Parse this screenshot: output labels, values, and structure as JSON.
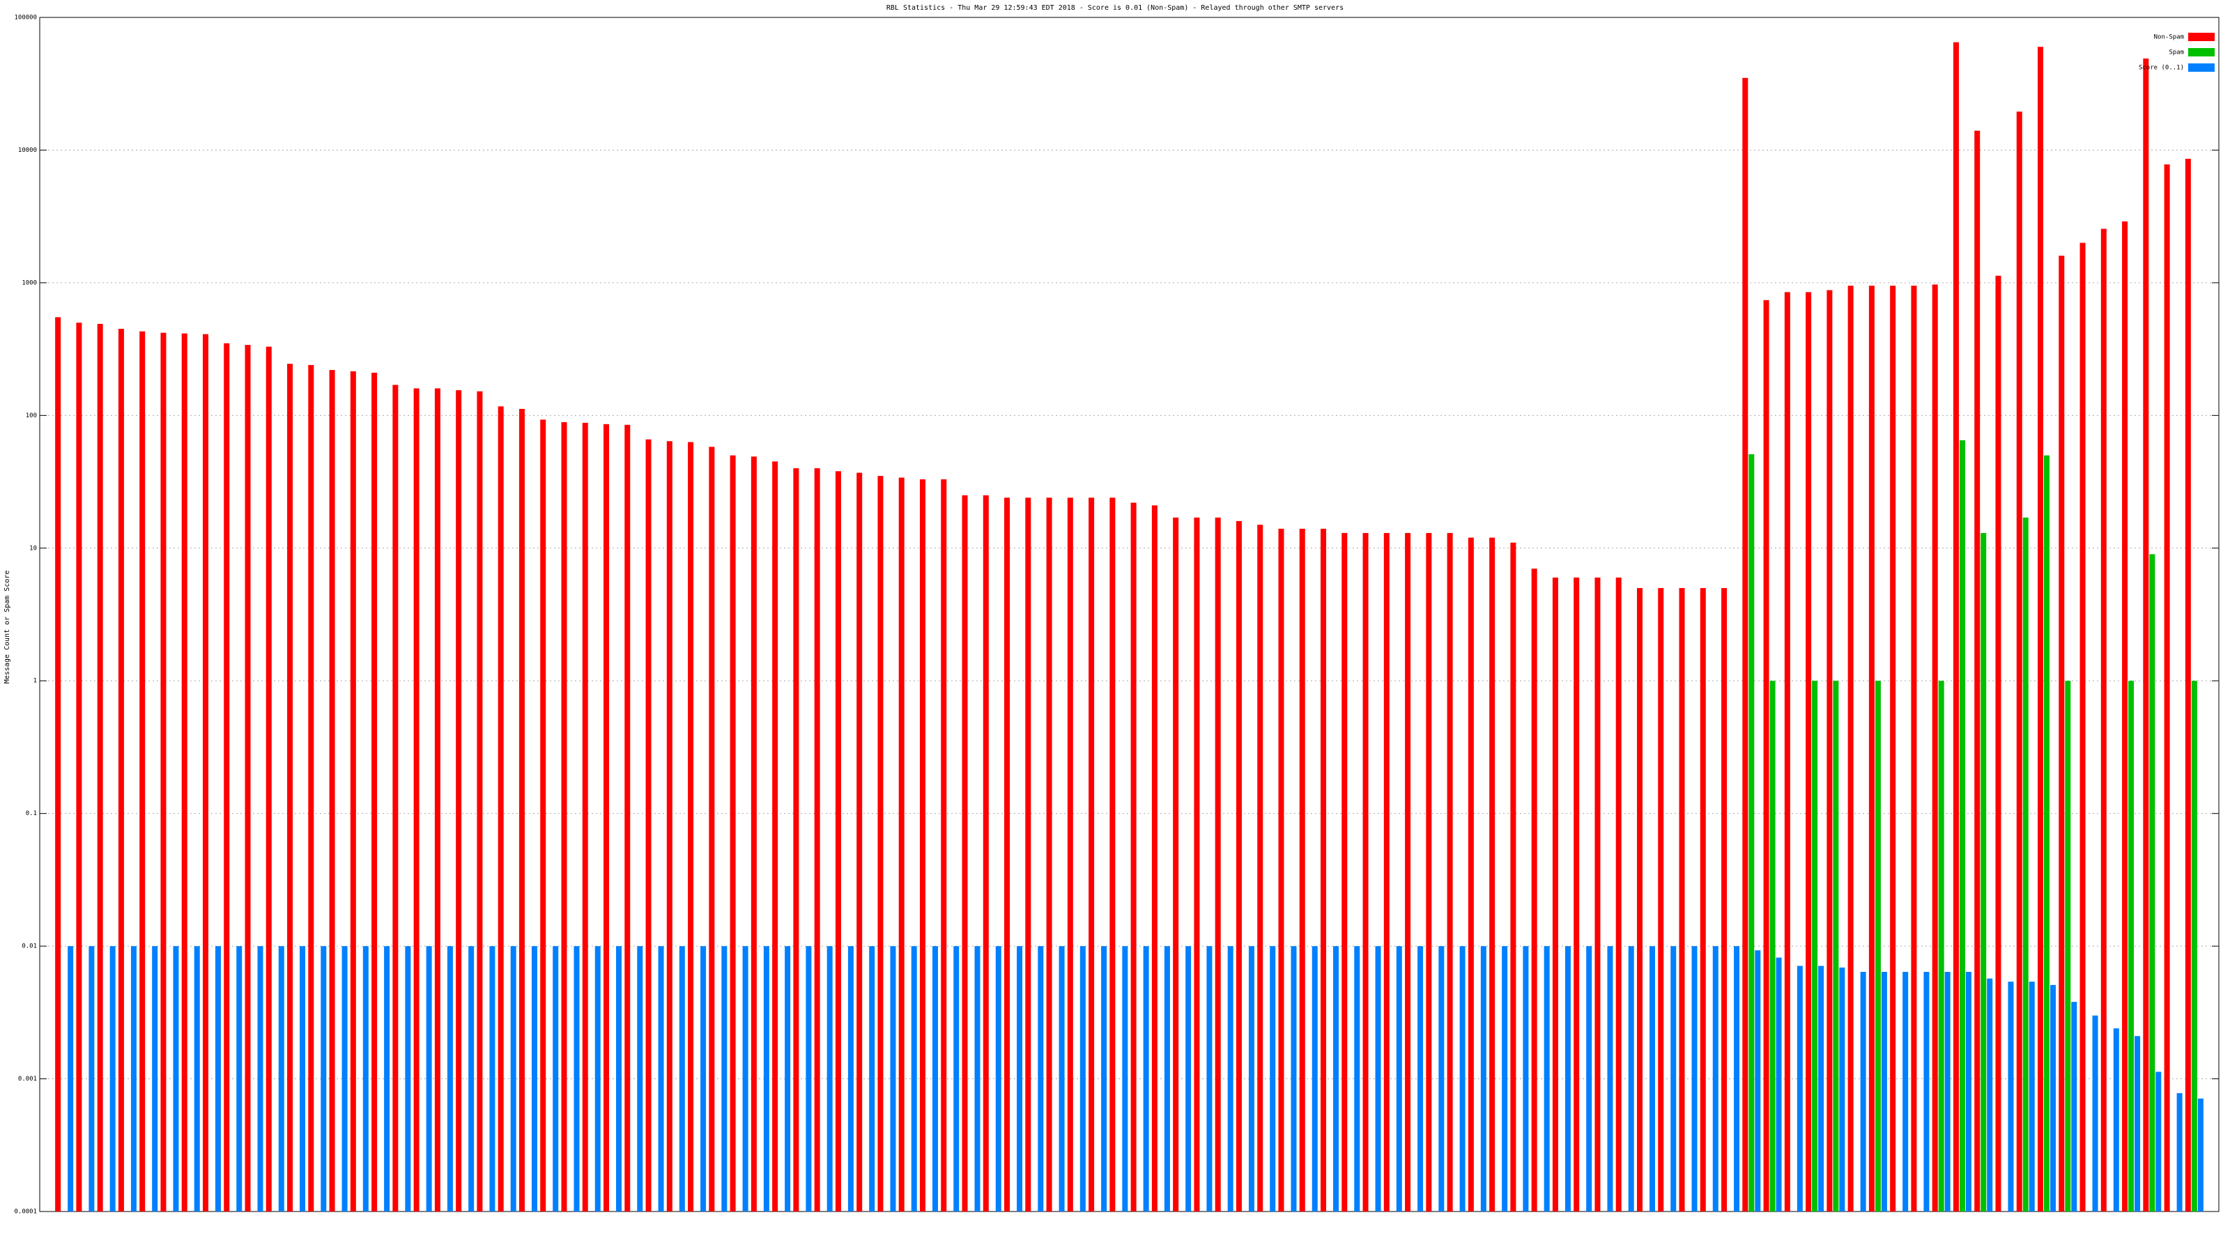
{
  "chart_data": {
    "type": "bar",
    "title": "RBL Statistics - Thu Mar 29 12:59:43 EDT 2018 - Score is 0.01 (Non-Spam) - Relayed through other SMTP servers",
    "y_label": "Message Count or Spam Score",
    "categories": [
      null,
      null,
      null,
      null,
      null,
      null,
      null,
      null,
      null,
      null,
      null,
      null,
      null,
      null,
      null,
      null,
      null,
      null,
      null,
      null,
      null,
      null,
      null,
      null,
      null,
      null,
      null,
      null,
      null,
      null,
      null,
      null,
      null,
      null,
      null,
      null,
      null,
      null,
      null,
      null,
      null,
      null,
      null,
      null,
      null,
      null,
      null,
      null,
      null,
      null,
      null,
      null,
      null,
      null,
      null,
      null,
      null,
      null,
      null,
      null,
      null,
      null,
      null,
      null,
      null,
      null,
      null,
      null,
      null,
      null,
      null,
      null,
      null,
      null,
      null,
      null,
      null,
      null,
      null,
      null,
      null,
      null,
      null,
      null,
      null,
      null,
      null,
      null,
      null,
      null,
      null,
      null,
      null,
      null,
      null,
      null,
      null,
      null,
      null,
      null,
      null,
      null
    ],
    "series": [
      {
        "name": "Non-Spam",
        "color": "#ff0000",
        "values": [
          550,
          500,
          490,
          450,
          430,
          420,
          415,
          410,
          350,
          340,
          330,
          245,
          240,
          220,
          215,
          210,
          170,
          160,
          160,
          155,
          152,
          117,
          112,
          93,
          89,
          88,
          86,
          85,
          66,
          64,
          63,
          58,
          50,
          49,
          45,
          40,
          40,
          38,
          37,
          35,
          34,
          33,
          33,
          25,
          25,
          24,
          24,
          24,
          24,
          24,
          24,
          22,
          21,
          17,
          17,
          17,
          16,
          15,
          14,
          14,
          14,
          13,
          13,
          13,
          13,
          13,
          13,
          12,
          12,
          11,
          7,
          6,
          6,
          6,
          6,
          5,
          5,
          5,
          5,
          5,
          35000,
          740,
          850,
          850,
          880,
          950,
          950,
          950,
          950,
          970,
          65000,
          14000,
          1130,
          19500,
          60000,
          1600,
          2000,
          2550,
          2900,
          49000,
          7800,
          8600
        ]
      },
      {
        "name": "Spam",
        "color": "#00c000",
        "values": [
          null,
          null,
          null,
          null,
          null,
          null,
          null,
          null,
          null,
          null,
          null,
          null,
          null,
          null,
          null,
          null,
          null,
          null,
          null,
          null,
          null,
          null,
          null,
          null,
          null,
          null,
          null,
          null,
          null,
          null,
          null,
          null,
          null,
          null,
          null,
          null,
          null,
          null,
          null,
          null,
          null,
          null,
          null,
          null,
          null,
          null,
          null,
          null,
          null,
          null,
          null,
          null,
          null,
          null,
          null,
          null,
          null,
          null,
          null,
          null,
          null,
          null,
          null,
          null,
          null,
          null,
          null,
          null,
          null,
          null,
          null,
          null,
          null,
          null,
          null,
          null,
          null,
          null,
          null,
          null,
          51,
          1,
          null,
          1,
          1,
          null,
          1,
          null,
          null,
          1,
          65,
          13,
          null,
          17,
          50,
          1,
          null,
          null,
          1,
          9,
          null,
          1
        ]
      },
      {
        "name": "Score (0..1)",
        "color": "#0080ff",
        "values": [
          0.01,
          0.01,
          0.01,
          0.01,
          0.01,
          0.01,
          0.01,
          0.01,
          0.01,
          0.01,
          0.01,
          0.01,
          0.01,
          0.01,
          0.01,
          0.01,
          0.01,
          0.01,
          0.01,
          0.01,
          0.01,
          0.01,
          0.01,
          0.01,
          0.01,
          0.01,
          0.01,
          0.01,
          0.01,
          0.01,
          0.01,
          0.01,
          0.01,
          0.01,
          0.01,
          0.01,
          0.01,
          0.01,
          0.01,
          0.01,
          0.01,
          0.01,
          0.01,
          0.01,
          0.01,
          0.01,
          0.01,
          0.01,
          0.01,
          0.01,
          0.01,
          0.01,
          0.01,
          0.01,
          0.01,
          0.01,
          0.01,
          0.01,
          0.01,
          0.01,
          0.01,
          0.01,
          0.01,
          0.01,
          0.01,
          0.01,
          0.01,
          0.01,
          0.01,
          0.01,
          0.01,
          0.01,
          0.01,
          0.01,
          0.01,
          0.01,
          0.01,
          0.01,
          0.01,
          0.01,
          0.0093,
          0.0082,
          0.0071,
          0.0071,
          0.0069,
          0.0064,
          0.0064,
          0.0064,
          0.0064,
          0.0064,
          0.0064,
          0.0057,
          0.0054,
          0.0054,
          0.0051,
          0.0038,
          0.003,
          0.0024,
          0.0021,
          0.00113,
          0.00078,
          0.00071
        ]
      }
    ],
    "ylim": [
      0.0001,
      100000
    ],
    "yticks": [
      0.0001,
      0.001,
      0.01,
      0.1,
      1,
      10,
      100,
      1000,
      10000,
      100000
    ],
    "log_y": true,
    "grid": true,
    "legend": "top-right"
  }
}
